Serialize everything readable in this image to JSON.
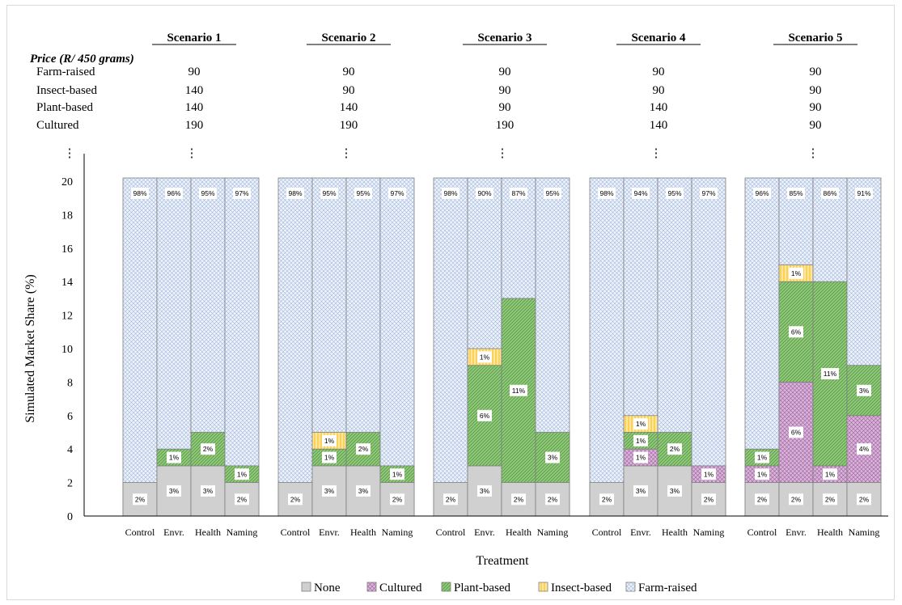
{
  "chart_data": {
    "type": "bar",
    "stacked": true,
    "price_header": "Price (R/ 450 grams)",
    "price_rows": [
      "Farm-raised",
      "Insect-based",
      "Plant-based",
      "Cultured"
    ],
    "scenarios": [
      {
        "name": "Scenario 1",
        "prices": [
          "90",
          "140",
          "140",
          "190"
        ],
        "treatments": [
          {
            "label": "Control",
            "none": 2,
            "cultured": 0,
            "plant": 0,
            "insect": 0,
            "labels": {
              "none": "2%",
              "farm": "98%"
            }
          },
          {
            "label": "Envr.",
            "none": 3,
            "cultured": 0,
            "plant": 1,
            "insect": 0,
            "labels": {
              "none": "3%",
              "plant": "1%",
              "farm": "96%"
            }
          },
          {
            "label": "Health",
            "none": 3,
            "cultured": 0,
            "plant": 2,
            "insect": 0,
            "labels": {
              "none": "3%",
              "plant": "2%",
              "farm": "95%"
            }
          },
          {
            "label": "Naming",
            "none": 2,
            "cultured": 0,
            "plant": 1,
            "insect": 0,
            "labels": {
              "none": "2%",
              "plant": "1%",
              "farm": "97%"
            }
          }
        ]
      },
      {
        "name": "Scenario 2",
        "prices": [
          "90",
          "90",
          "140",
          "190"
        ],
        "treatments": [
          {
            "label": "Control",
            "none": 2,
            "cultured": 0,
            "plant": 0,
            "insect": 0,
            "labels": {
              "none": "2%",
              "farm": "98%"
            }
          },
          {
            "label": "Envr.",
            "none": 3,
            "cultured": 0,
            "plant": 1,
            "insect": 1,
            "labels": {
              "none": "3%",
              "plant": "1%",
              "insect": "1%",
              "farm": "95%"
            }
          },
          {
            "label": "Health",
            "none": 3,
            "cultured": 0,
            "plant": 2,
            "insect": 0,
            "labels": {
              "none": "3%",
              "plant": "2%",
              "farm": "95%"
            }
          },
          {
            "label": "Naming",
            "none": 2,
            "cultured": 0,
            "plant": 1,
            "insect": 0,
            "labels": {
              "none": "2%",
              "plant": "1%",
              "farm": "97%"
            }
          }
        ]
      },
      {
        "name": "Scenario 3",
        "prices": [
          "90",
          "90",
          "90",
          "190"
        ],
        "treatments": [
          {
            "label": "Control",
            "none": 2,
            "cultured": 0,
            "plant": 0,
            "insect": 0,
            "labels": {
              "none": "2%",
              "farm": "98%"
            }
          },
          {
            "label": "Envr.",
            "none": 3,
            "cultured": 0,
            "plant": 6,
            "insect": 1,
            "labels": {
              "none": "3%",
              "plant": "6%",
              "insect": "1%",
              "farm": "90%"
            }
          },
          {
            "label": "Health",
            "none": 2,
            "cultured": 0,
            "plant": 11,
            "insect": 0,
            "labels": {
              "none": "2%",
              "plant": "11%",
              "farm": "87%"
            }
          },
          {
            "label": "Naming",
            "none": 2,
            "cultured": 0,
            "plant": 3,
            "insect": 0,
            "labels": {
              "none": "2%",
              "plant": "3%",
              "farm": "95%"
            }
          }
        ]
      },
      {
        "name": "Scenario 4",
        "prices": [
          "90",
          "90",
          "140",
          "140"
        ],
        "treatments": [
          {
            "label": "Control",
            "none": 2,
            "cultured": 0,
            "plant": 0,
            "insect": 0,
            "labels": {
              "none": "2%",
              "farm": "98%"
            }
          },
          {
            "label": "Envr.",
            "none": 3,
            "cultured": 1,
            "plant": 1,
            "insect": 1,
            "labels": {
              "none": "3%",
              "cultured": "1%",
              "plant": "1%",
              "insect": "1%",
              "farm": "94%"
            }
          },
          {
            "label": "Health",
            "none": 3,
            "cultured": 0,
            "plant": 2,
            "insect": 0,
            "labels": {
              "none": "3%",
              "plant": "2%",
              "farm": "95%"
            }
          },
          {
            "label": "Naming",
            "none": 2,
            "cultured": 1,
            "plant": 0,
            "insect": 0,
            "labels": {
              "none": "2%",
              "cultured": "1%",
              "farm": "97%"
            }
          }
        ]
      },
      {
        "name": "Scenario 5",
        "prices": [
          "90",
          "90",
          "90",
          "90"
        ],
        "treatments": [
          {
            "label": "Control",
            "none": 2,
            "cultured": 1,
            "plant": 1,
            "insect": 0,
            "labels": {
              "none": "2%",
              "cultured": "1%",
              "plant": "1%",
              "farm": "96%"
            }
          },
          {
            "label": "Envr.",
            "none": 2,
            "cultured": 6,
            "plant": 6,
            "insect": 1,
            "labels": {
              "none": "2%",
              "cultured": "6%",
              "plant": "6%",
              "insect": "1%",
              "farm": "85%"
            }
          },
          {
            "label": "Health",
            "none": 2,
            "cultured": 1,
            "plant": 11,
            "insect": 0,
            "labels": {
              "none": "2%",
              "cultured": "1%",
              "plant": "11%",
              "farm": "86%"
            }
          },
          {
            "label": "Naming",
            "none": 2,
            "cultured": 4,
            "plant": 3,
            "insect": 0,
            "labels": {
              "none": "2%",
              "cultured": "4%",
              "plant": "3%",
              "farm": "91%"
            }
          }
        ]
      }
    ],
    "ylabel": "Simulated Market Share (%)",
    "xlabel": "Treatment",
    "ylim": [
      0,
      20
    ],
    "yticks": [
      "0",
      "2",
      "4",
      "6",
      "8",
      "10",
      "12",
      "14",
      "16",
      "18",
      "20"
    ],
    "axis_break_marker": "⋮",
    "legend_position": "bottom",
    "legend": [
      {
        "key": "none",
        "label": "None",
        "color": "#d0d0d0"
      },
      {
        "key": "cultured",
        "label": "Cultured",
        "color": "#d9b3d9"
      },
      {
        "key": "plant",
        "label": "Plant-based",
        "color": "#8fc87a"
      },
      {
        "key": "insect",
        "label": "Insect-based",
        "color": "#ffd966"
      },
      {
        "key": "farm",
        "label": "Farm-raised",
        "color": "#dce6f5"
      }
    ]
  }
}
